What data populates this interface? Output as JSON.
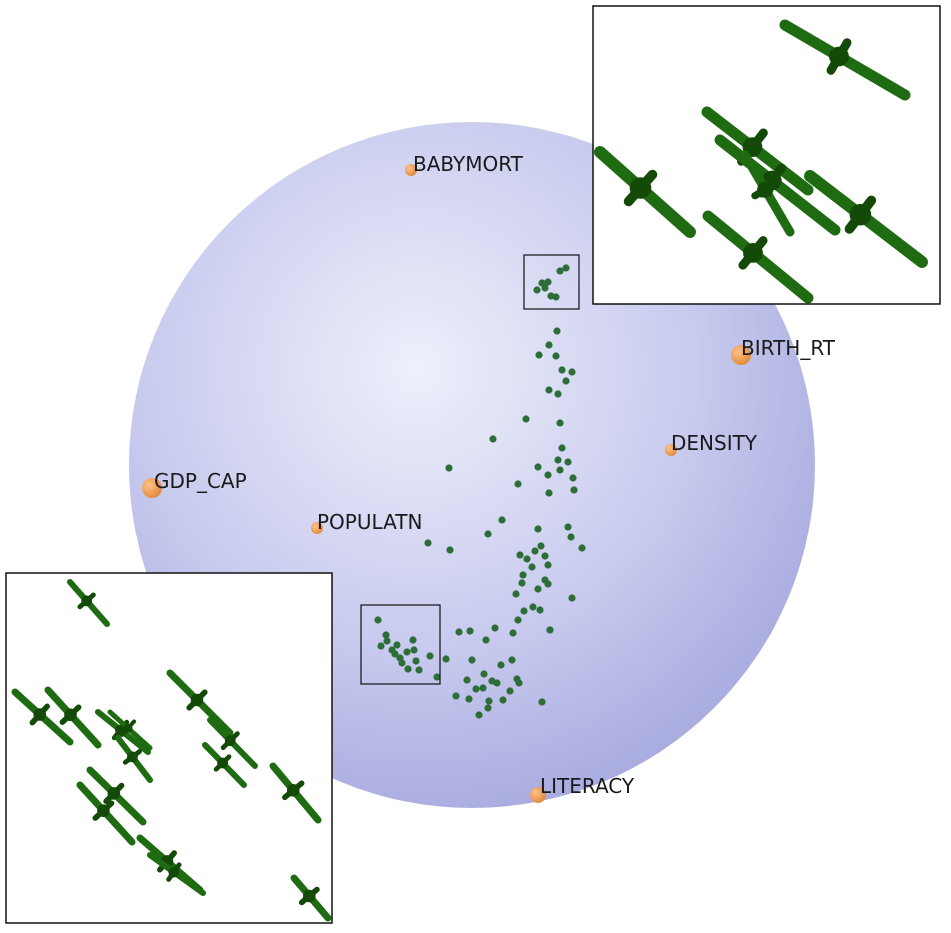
{
  "colors": {
    "sphere_light": "#eef0fb",
    "sphere_mid": "#c9cbef",
    "sphere_edge": "#a9acdf",
    "variable_point": "#e0883a",
    "observation_point": "#2d6e38",
    "glyph": "#1f6b12",
    "glyph_dark": "#134a08",
    "frame": "#111111"
  },
  "variables": [
    {
      "name": "BABYMORT",
      "label": "BABYMORT"
    },
    {
      "name": "BIRTH_RT",
      "label": "BIRTH_RT"
    },
    {
      "name": "DENSITY",
      "label": "DENSITY"
    },
    {
      "name": "GDP_CAP",
      "label": "GDP_CAP"
    },
    {
      "name": "POPULATN",
      "label": "POPULATN"
    },
    {
      "name": "LITERACY",
      "label": "LITERACY"
    }
  ],
  "insets": [
    {
      "name": "zoom-inset-top-right",
      "icon": "glyph-stick-icon"
    },
    {
      "name": "zoom-inset-bottom-left",
      "icon": "glyph-stick-icon"
    }
  ]
}
